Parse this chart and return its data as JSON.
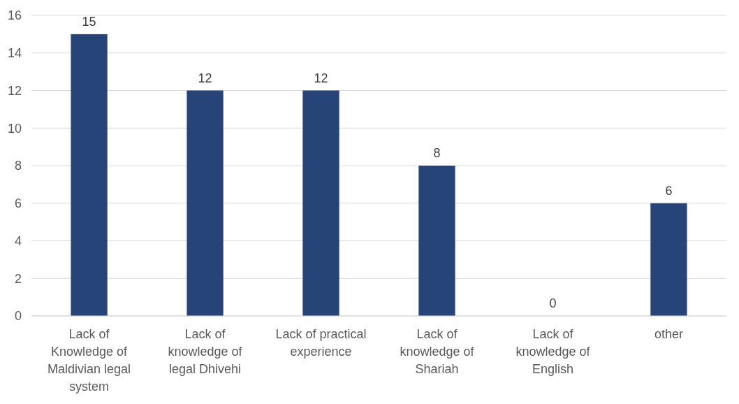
{
  "chart_data": {
    "type": "bar",
    "categories": [
      "Lack of Knowledge of Maldivian legal system",
      "Lack of knowledge of legal Dhivehi",
      "Lack of practical experience",
      "Lack of knowledge of Shariah",
      "Lack of knowledge of English",
      "other"
    ],
    "values": [
      15,
      12,
      12,
      8,
      0,
      6
    ],
    "color": "#264478",
    "ylim": [
      0,
      16
    ],
    "yticks": [
      0,
      2,
      4,
      6,
      8,
      10,
      12,
      14,
      16
    ],
    "grid": "y",
    "data_labels": true
  }
}
